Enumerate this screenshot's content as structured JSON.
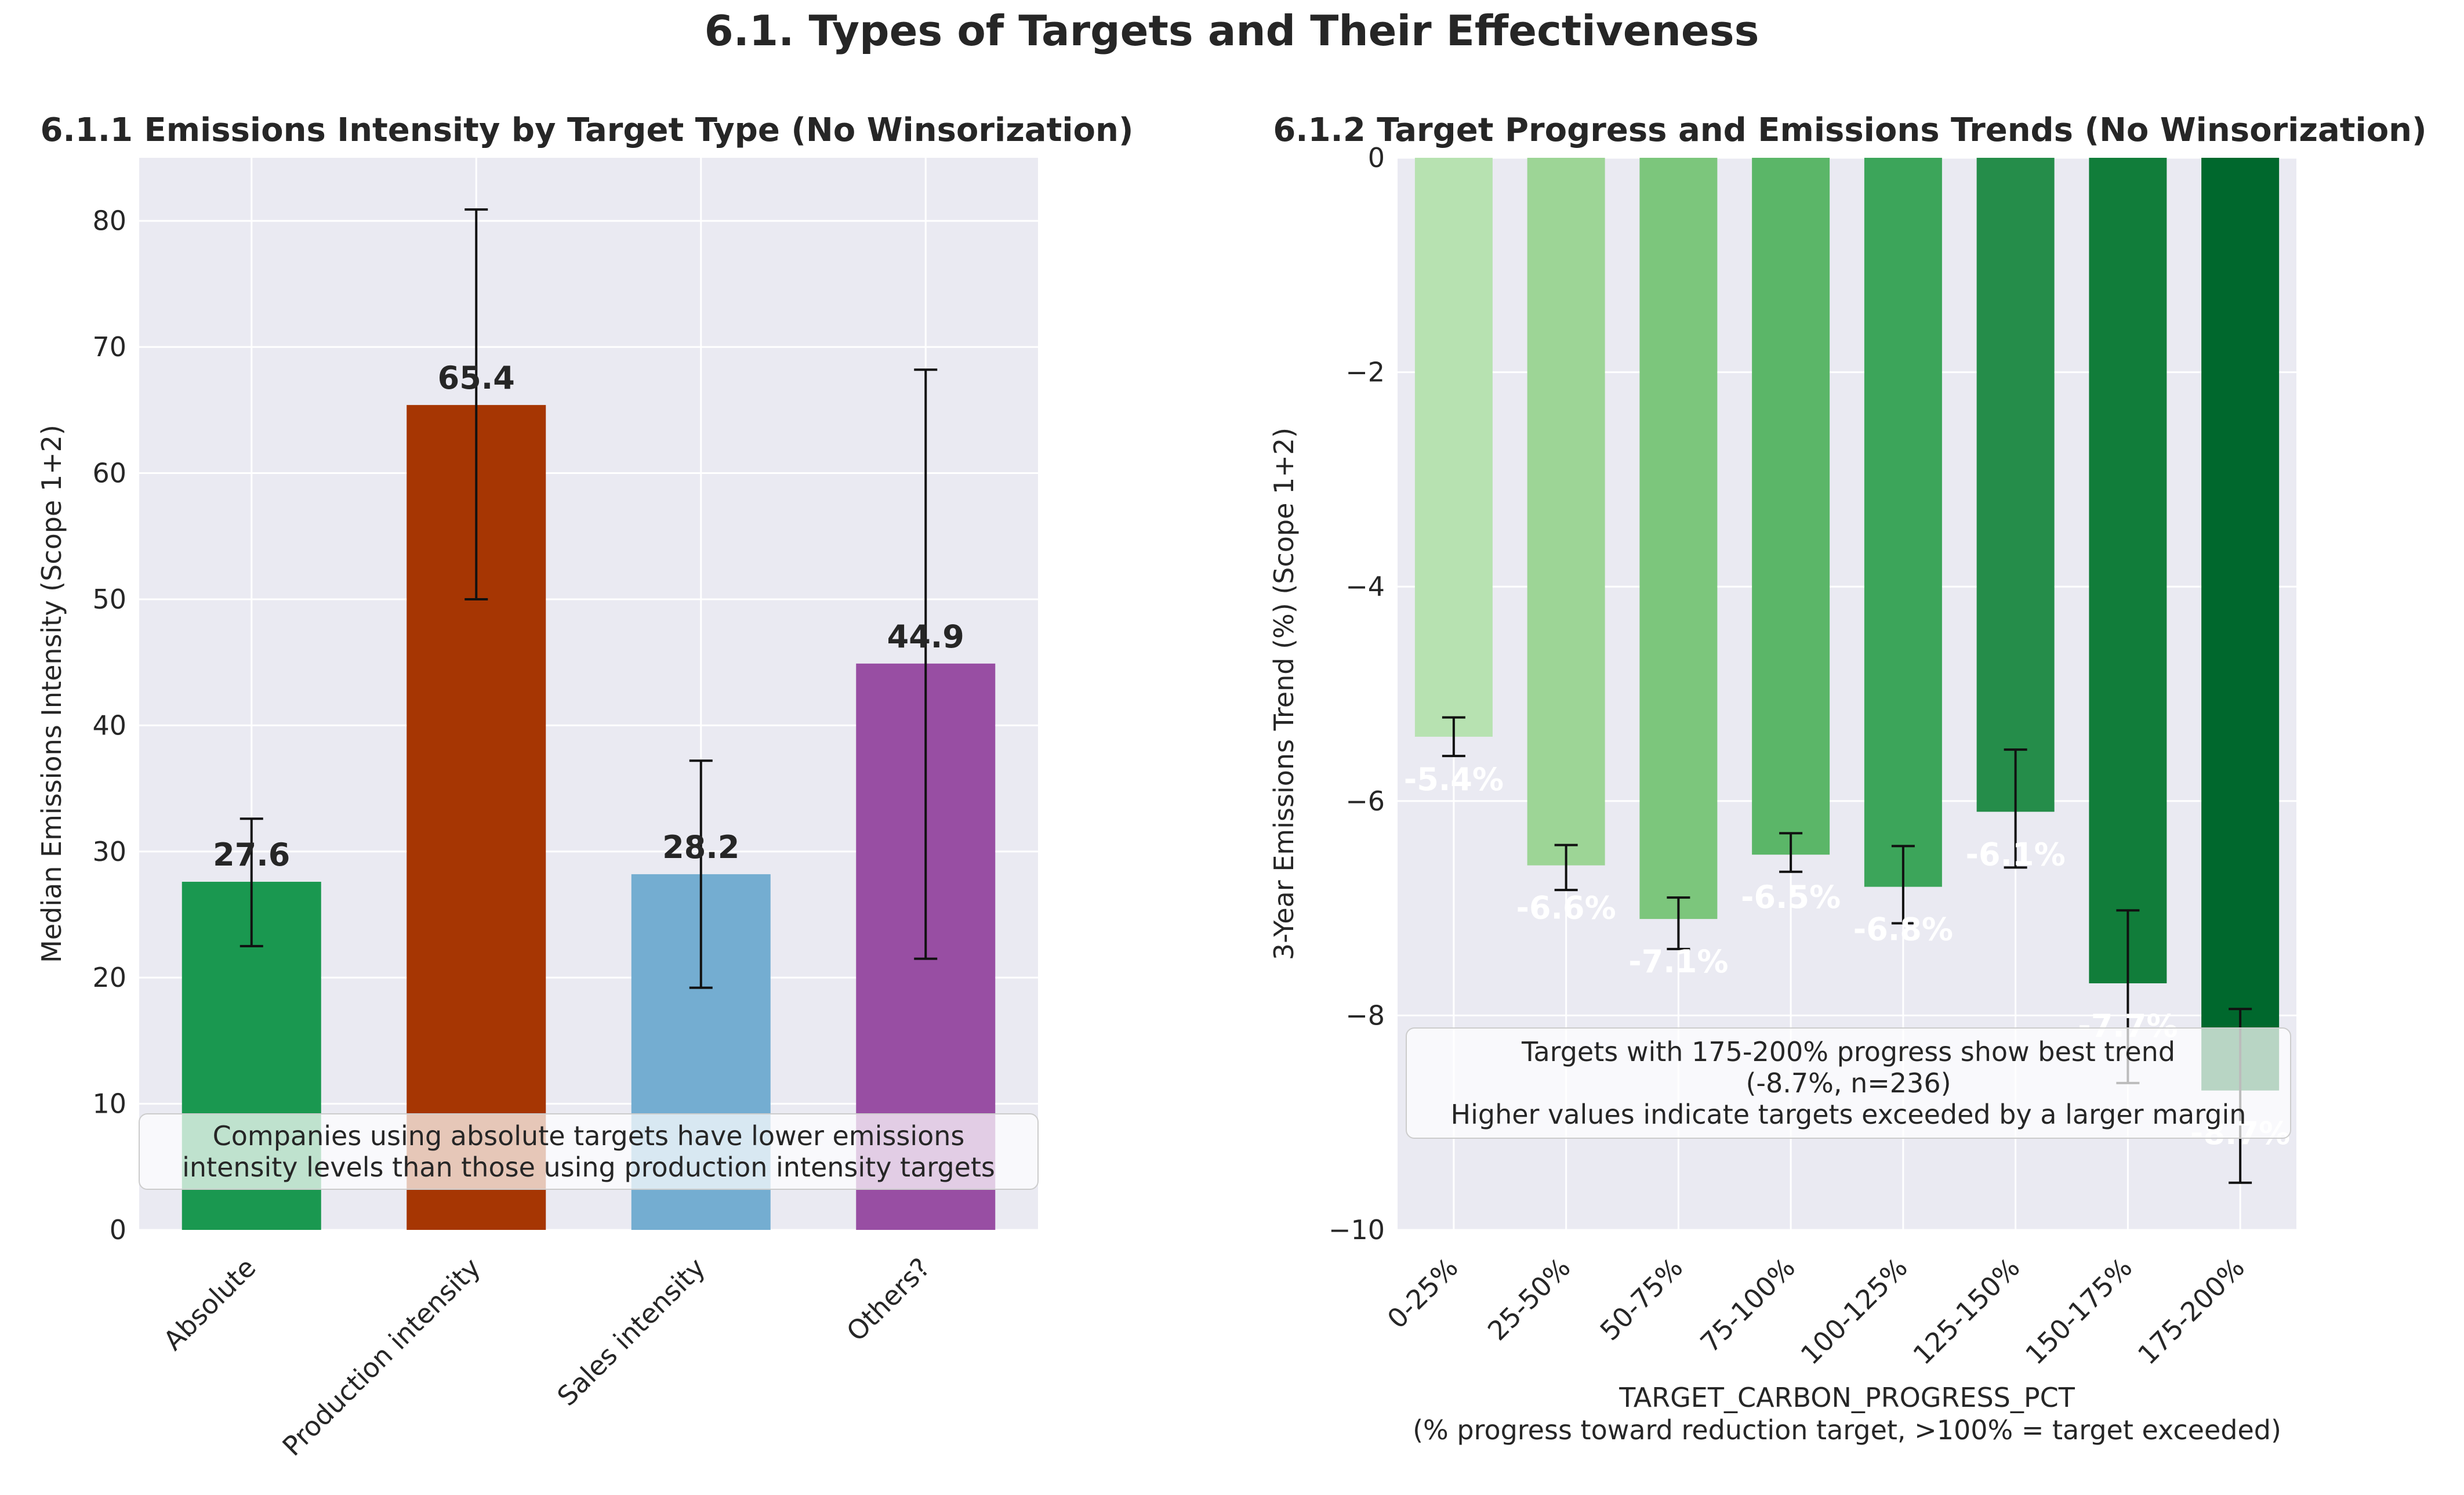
{
  "suptitle": "6.1. Types of Targets and Their Effectiveness",
  "chart_data": [
    {
      "type": "bar",
      "title": "6.1.1 Emissions Intensity by Target Type (No Winsorization)",
      "xlabel": "",
      "ylabel": "Median Emissions Intensity (Scope 1+2)",
      "categories": [
        "Absolute",
        "Production intensity",
        "Sales intensity",
        "Others?"
      ],
      "values": [
        27.6,
        65.4,
        28.2,
        44.9
      ],
      "value_labels": [
        "27.6",
        "65.4",
        "28.2",
        "44.9"
      ],
      "error_low": [
        22.5,
        50.0,
        19.2,
        21.5
      ],
      "error_high": [
        32.6,
        80.9,
        37.2,
        68.2
      ],
      "colors": [
        "#1a9850",
        "#a63603",
        "#74add1",
        "#984ea3"
      ],
      "ylim": [
        0,
        85
      ],
      "yticks": [
        0,
        10,
        20,
        30,
        40,
        50,
        60,
        70,
        80
      ],
      "grid": true,
      "annotation": [
        "Companies using absolute targets have lower emissions",
        "intensity levels than those using production intensity targets"
      ]
    },
    {
      "type": "bar",
      "title": "6.1.2 Target Progress and Emissions Trends (No Winsorization)",
      "xlabel": [
        "TARGET_CARBON_PROGRESS_PCT",
        "(% progress toward reduction target, >100% = target exceeded)"
      ],
      "ylabel": "3-Year Emissions Trend (%) (Scope 1+2)",
      "categories": [
        "0-25%",
        "25-50%",
        "50-75%",
        "75-100%",
        "100-125%",
        "125-150%",
        "150-175%",
        "175-200%"
      ],
      "values": [
        -5.4,
        -6.6,
        -7.1,
        -6.5,
        -6.8,
        -6.1,
        -7.7,
        -8.7
      ],
      "value_labels": [
        "-5.4%",
        "-6.6%",
        "-7.1%",
        "-6.5%",
        "-6.8%",
        "-6.1%",
        "-7.7%",
        "-8.7%"
      ],
      "error_low": [
        -5.58,
        -6.83,
        -7.38,
        -6.66,
        -7.14,
        -6.62,
        -8.63,
        -9.56
      ],
      "error_high": [
        -5.22,
        -6.41,
        -6.9,
        -6.3,
        -6.42,
        -5.52,
        -7.02,
        -7.94
      ],
      "colors": [
        "#b7e2b1",
        "#9dd596",
        "#7cc67c",
        "#5bb668",
        "#3ca55a",
        "#258d4a",
        "#117d3a",
        "#00682d"
      ],
      "ylim": [
        -10,
        0
      ],
      "yticks": [
        0,
        -2,
        -4,
        -6,
        -8,
        -10
      ],
      "ytick_labels": [
        "0",
        "−2",
        "−4",
        "−6",
        "−8",
        "−10"
      ],
      "grid": true,
      "annotation": [
        "Targets with 175-200% progress show best trend",
        "(-8.7%, n=236)",
        "Higher values indicate targets exceeded by a larger margin"
      ]
    }
  ]
}
